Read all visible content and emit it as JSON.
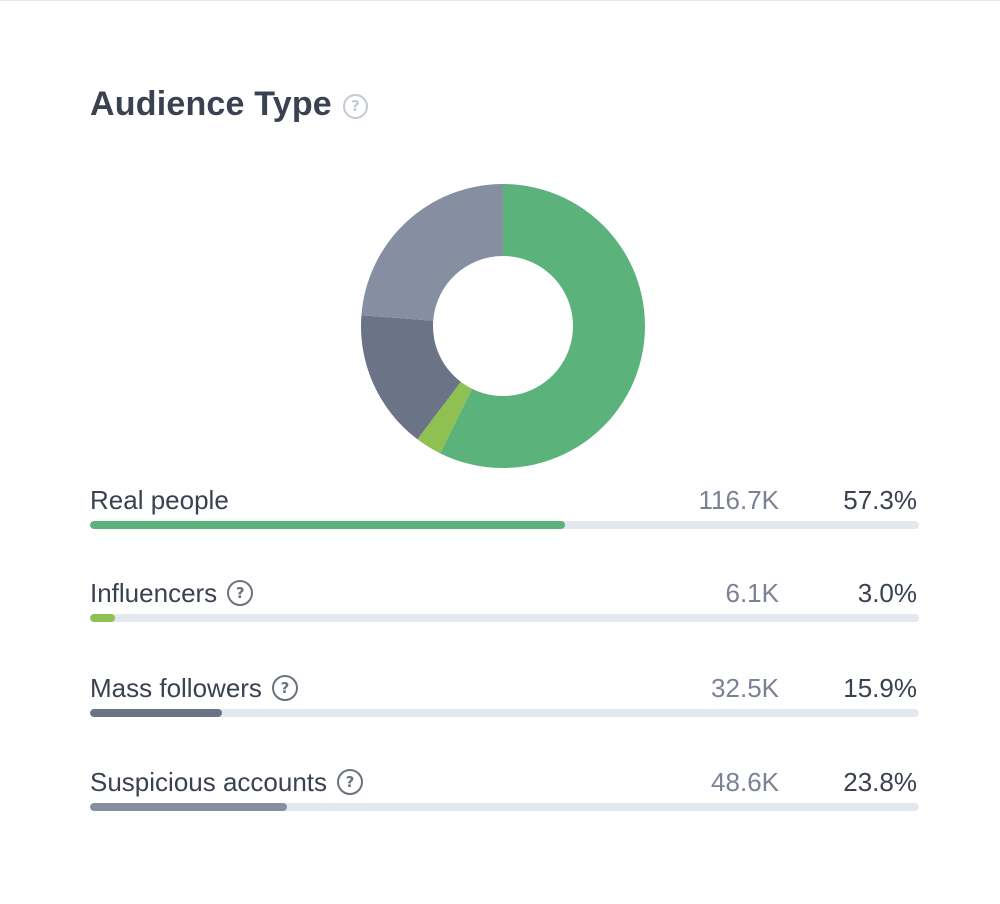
{
  "widget": {
    "title": "Audience Type"
  },
  "chart_data": {
    "type": "pie",
    "style": "donut",
    "categories": [
      "Real people",
      "Influencers",
      "Mass followers",
      "Suspicious accounts"
    ],
    "counts": [
      "116.7K",
      "6.1K",
      "32.5K",
      "48.6K"
    ],
    "percent_labels": [
      "57.3%",
      "3.0%",
      "15.9%",
      "23.8%"
    ],
    "values": [
      57.3,
      3.0,
      15.9,
      23.8
    ],
    "colors": [
      "#5bb27a",
      "#8fc052",
      "#6b7386",
      "#868fa1"
    ],
    "help_icons": [
      false,
      true,
      true,
      true
    ]
  }
}
